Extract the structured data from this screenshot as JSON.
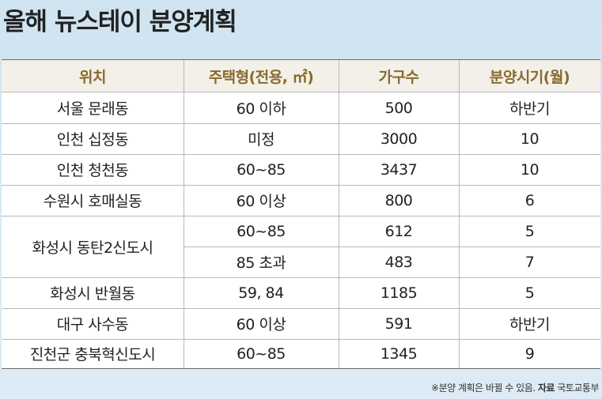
{
  "title": "올해 뉴스테이 분양계획",
  "table": {
    "headers": [
      "위치",
      "주택형(전용, ㎡)",
      "가구수",
      "분양시기(월)"
    ],
    "rows": [
      {
        "location": "서울 문래동",
        "type": "60 이하",
        "units": "500",
        "timing": "하반기"
      },
      {
        "location": "인천 십정동",
        "type": "미정",
        "units": "3000",
        "timing": "10"
      },
      {
        "location": "인천 청천동",
        "type": "60~85",
        "units": "3437",
        "timing": "10"
      },
      {
        "location": "수원시 호매실동",
        "type": "60 이상",
        "units": "800",
        "timing": "6"
      },
      {
        "location": "화성시 동탄2신도시",
        "type": "60~85",
        "units": "612",
        "timing": "5"
      },
      {
        "location": "",
        "type": "85 초과",
        "units": "483",
        "timing": "7"
      },
      {
        "location": "화성시 반월동",
        "type": "59, 84",
        "units": "1185",
        "timing": "5"
      },
      {
        "location": "대구 사수동",
        "type": "60 이상",
        "units": "591",
        "timing": "하반기"
      },
      {
        "location": "진천군 충북혁신도시",
        "type": "60~85",
        "units": "1345",
        "timing": "9"
      }
    ]
  },
  "footnote": {
    "text": "※분양 계획은 바뀔 수 있음.",
    "source_label": "자료",
    "source": "국토교통부"
  }
}
